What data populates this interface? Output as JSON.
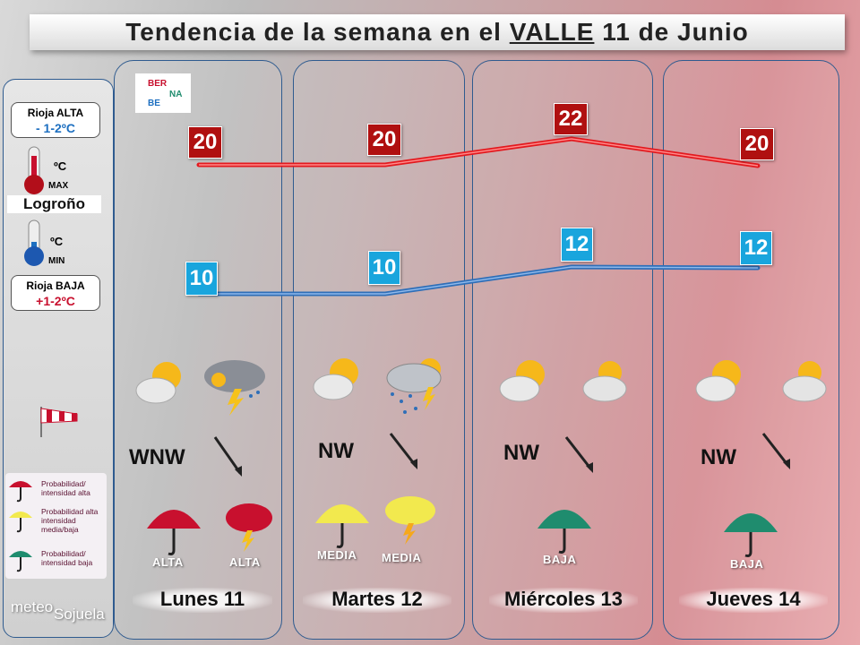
{
  "header": {
    "title_prefix": "Tendencia de la semana en el ",
    "title_valle": "VALLE",
    "title_suffix": " 11 de Junio"
  },
  "sidebar": {
    "alta_title": "Rioja ALTA",
    "alta_delta": "- 1-2ºC",
    "max_unit": "ºC",
    "max_label": "MAX",
    "city": "Logroño",
    "min_unit": "ºC",
    "min_label": "MIN",
    "baja_title": "Rioja BAJA",
    "baja_delta": "+1-2ºC",
    "legend": [
      {
        "text": "Probabilidad/ intensidad alta",
        "color": "#c8102e"
      },
      {
        "text": "Probabilidad alta intensidad media/baja",
        "color": "#f2e94e"
      },
      {
        "text": "Probabilidad/ intensidad baja",
        "color": "#1f8c6e"
      }
    ],
    "brand_a": "meteo",
    "brand_b": "Sojuela"
  },
  "logo": {
    "l1": "BER",
    "l2": "NA",
    "l3": "BE"
  },
  "colors": {
    "max_line": "#e3191e",
    "min_line": "#2f6fb8",
    "alta": "#c8102e",
    "media": "#f2e94e",
    "baja": "#1f8c6e"
  },
  "days": [
    {
      "label": "Lunes 11",
      "max": "20",
      "min": "10",
      "wind": "WNW",
      "rain_level": "ALTA",
      "storm_level": "ALTA",
      "icon_am": "sun-cloud-icon",
      "icon_pm": "storm-icon"
    },
    {
      "label": "Martes 12",
      "max": "20",
      "min": "10",
      "wind": "NW",
      "rain_level": "MEDIA",
      "storm_level": "MEDIA",
      "icon_am": "sun-cloud-icon",
      "icon_pm": "storm-rain-icon"
    },
    {
      "label": "Miércoles 13",
      "max": "22",
      "min": "12",
      "wind": "NW",
      "rain_level": "BAJA",
      "icon_am": "sun-cloud-icon",
      "icon_pm": "cloud-sun-icon"
    },
    {
      "label": "Jueves 14",
      "max": "20",
      "min": "12",
      "wind": "NW",
      "rain_level": "BAJA",
      "icon_am": "sun-cloud-icon",
      "icon_pm": "cloud-sun-icon"
    }
  ]
}
